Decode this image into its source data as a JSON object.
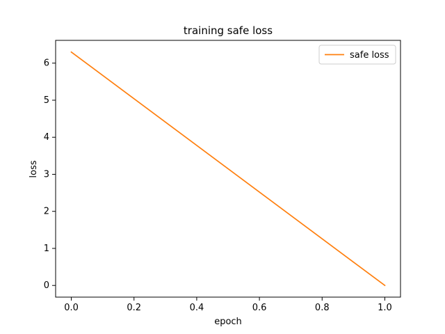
{
  "chart_data": {
    "type": "line",
    "title": "training safe loss",
    "xlabel": "epoch",
    "ylabel": "loss",
    "xlim": [
      -0.05,
      1.05
    ],
    "ylim": [
      -0.315,
      6.615
    ],
    "xticks": [
      0.0,
      0.2,
      0.4,
      0.6,
      0.8,
      1.0
    ],
    "xtick_labels": [
      "0.0",
      "0.2",
      "0.4",
      "0.6",
      "0.8",
      "1.0"
    ],
    "yticks": [
      0,
      1,
      2,
      3,
      4,
      5,
      6
    ],
    "ytick_labels": [
      "0",
      "1",
      "2",
      "3",
      "4",
      "5",
      "6"
    ],
    "grid": false,
    "legend_position": "top-right",
    "series": [
      {
        "name": "safe loss",
        "color": "#ff7f0e",
        "x": [
          0.0,
          1.0
        ],
        "y": [
          6.3,
          0.0
        ]
      }
    ]
  }
}
